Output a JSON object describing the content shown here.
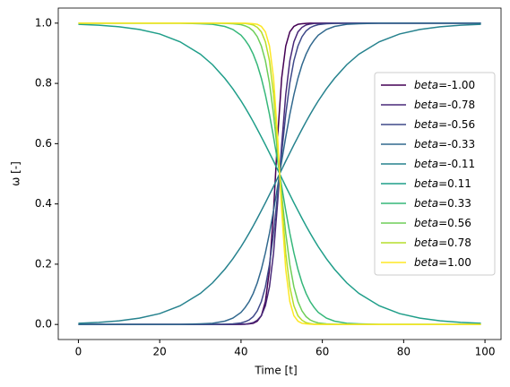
{
  "chart_data": {
    "type": "line",
    "x_label": "Time [t]",
    "y_label": "ω [-]",
    "x": [
      0,
      5,
      10,
      15,
      20,
      25,
      30,
      33,
      36,
      38,
      40,
      41,
      42,
      43,
      44,
      45,
      46,
      47,
      48,
      49,
      50,
      51,
      52,
      53,
      54,
      55,
      56,
      57,
      58,
      59,
      61,
      63,
      66,
      69,
      74,
      79,
      84,
      89,
      94,
      99
    ],
    "xlim": [
      -4.95,
      103.95
    ],
    "xticks": [
      0,
      20,
      40,
      60,
      80,
      100
    ],
    "ylim": [
      -0.05,
      1.05
    ],
    "yticks": [
      {
        "value": 0,
        "label": "0.0"
      },
      {
        "value": 0.2,
        "label": "0.2"
      },
      {
        "value": 0.4,
        "label": "0.4"
      },
      {
        "value": 0.6,
        "label": "0.6"
      },
      {
        "value": 0.8,
        "label": "0.8"
      },
      {
        "value": 1,
        "label": "1.0"
      }
    ],
    "legend": "center right",
    "series": [
      {
        "name": "beta=-1.00",
        "color": "#440154",
        "values": [
          0,
          0,
          0,
          0,
          0,
          0,
          0,
          0,
          0,
          0,
          0,
          0.001,
          0.002,
          0.004,
          0.011,
          0.029,
          0.076,
          0.182,
          0.378,
          0.622,
          0.818,
          0.924,
          0.971,
          0.989,
          0.996,
          0.998,
          0.999,
          1,
          1,
          1,
          1,
          1,
          1,
          1,
          1,
          1,
          1,
          1,
          1,
          1
        ]
      },
      {
        "name": "beta=-0.78",
        "color": "#482878",
        "values": [
          0,
          0,
          0,
          0,
          0,
          0,
          0,
          0,
          0,
          0,
          0.001,
          0.001,
          0.003,
          0.006,
          0.014,
          0.029,
          0.062,
          0.125,
          0.237,
          0.404,
          0.596,
          0.763,
          0.875,
          0.938,
          0.971,
          0.986,
          0.994,
          0.997,
          0.999,
          0.999,
          1,
          1,
          1,
          1,
          1,
          1,
          1,
          1,
          1,
          1
        ]
      },
      {
        "name": "beta=-0.56",
        "color": "#3e4989",
        "values": [
          0,
          0,
          0,
          0,
          0,
          0,
          0,
          0,
          0.001,
          0.002,
          0.005,
          0.009,
          0.015,
          0.026,
          0.045,
          0.076,
          0.125,
          0.199,
          0.303,
          0.431,
          0.569,
          0.697,
          0.801,
          0.875,
          0.924,
          0.955,
          0.974,
          0.985,
          0.991,
          0.995,
          0.998,
          0.999,
          1,
          1,
          1,
          1,
          1,
          1,
          1,
          1
        ]
      },
      {
        "name": "beta=-0.33",
        "color": "#31688e",
        "values": [
          0,
          0,
          0,
          0,
          0,
          0,
          0.002,
          0.004,
          0.011,
          0.021,
          0.04,
          0.056,
          0.076,
          0.103,
          0.138,
          0.183,
          0.238,
          0.303,
          0.378,
          0.458,
          0.542,
          0.622,
          0.697,
          0.762,
          0.817,
          0.862,
          0.897,
          0.924,
          0.944,
          0.96,
          0.979,
          0.989,
          0.996,
          0.998,
          1,
          1,
          1,
          1,
          1,
          1
        ]
      },
      {
        "name": "beta=-0.11",
        "color": "#26828e",
        "values": [
          0.004,
          0.007,
          0.012,
          0.021,
          0.036,
          0.062,
          0.103,
          0.138,
          0.183,
          0.218,
          0.258,
          0.28,
          0.303,
          0.327,
          0.352,
          0.378,
          0.404,
          0.431,
          0.458,
          0.486,
          0.514,
          0.542,
          0.569,
          0.596,
          0.622,
          0.648,
          0.673,
          0.697,
          0.72,
          0.742,
          0.782,
          0.817,
          0.862,
          0.897,
          0.938,
          0.964,
          0.979,
          0.988,
          0.993,
          0.996
        ]
      },
      {
        "name": "beta=0.11",
        "color": "#1f9e89",
        "values": [
          0.996,
          0.993,
          0.988,
          0.979,
          0.964,
          0.938,
          0.897,
          0.862,
          0.817,
          0.782,
          0.742,
          0.72,
          0.697,
          0.673,
          0.648,
          0.622,
          0.596,
          0.569,
          0.542,
          0.514,
          0.486,
          0.458,
          0.431,
          0.404,
          0.378,
          0.352,
          0.327,
          0.303,
          0.28,
          0.258,
          0.218,
          0.183,
          0.138,
          0.103,
          0.062,
          0.036,
          0.021,
          0.012,
          0.007,
          0.004
        ]
      },
      {
        "name": "beta=0.33",
        "color": "#35b779",
        "values": [
          1,
          1,
          1,
          1,
          1,
          1,
          0.998,
          0.996,
          0.989,
          0.979,
          0.96,
          0.944,
          0.924,
          0.897,
          0.862,
          0.817,
          0.762,
          0.697,
          0.622,
          0.542,
          0.458,
          0.378,
          0.303,
          0.238,
          0.183,
          0.138,
          0.103,
          0.076,
          0.056,
          0.04,
          0.021,
          0.011,
          0.004,
          0.002,
          0,
          0,
          0,
          0,
          0,
          0
        ]
      },
      {
        "name": "beta=0.56",
        "color": "#6ece58",
        "values": [
          1,
          1,
          1,
          1,
          1,
          1,
          1,
          1,
          0.999,
          0.998,
          0.995,
          0.991,
          0.985,
          0.974,
          0.955,
          0.924,
          0.875,
          0.801,
          0.697,
          0.569,
          0.431,
          0.303,
          0.199,
          0.125,
          0.076,
          0.045,
          0.026,
          0.015,
          0.009,
          0.005,
          0.002,
          0.001,
          0,
          0,
          0,
          0,
          0,
          0,
          0,
          0
        ]
      },
      {
        "name": "beta=0.78",
        "color": "#b5de2b",
        "values": [
          1,
          1,
          1,
          1,
          1,
          1,
          1,
          1,
          1,
          1,
          0.999,
          0.999,
          0.997,
          0.994,
          0.986,
          0.971,
          0.938,
          0.875,
          0.763,
          0.596,
          0.404,
          0.237,
          0.125,
          0.062,
          0.029,
          0.014,
          0.006,
          0.003,
          0.001,
          0.001,
          0,
          0,
          0,
          0,
          0,
          0,
          0,
          0,
          0,
          0
        ]
      },
      {
        "name": "beta=1.00",
        "color": "#fde725",
        "values": [
          1,
          1,
          1,
          1,
          1,
          1,
          1,
          1,
          1,
          1,
          1,
          1,
          0.999,
          0.998,
          0.996,
          0.989,
          0.971,
          0.924,
          0.818,
          0.622,
          0.378,
          0.182,
          0.076,
          0.029,
          0.011,
          0.004,
          0.002,
          0.001,
          0,
          0,
          0,
          0,
          0,
          0,
          0,
          0,
          0,
          0,
          0,
          0
        ]
      }
    ]
  }
}
